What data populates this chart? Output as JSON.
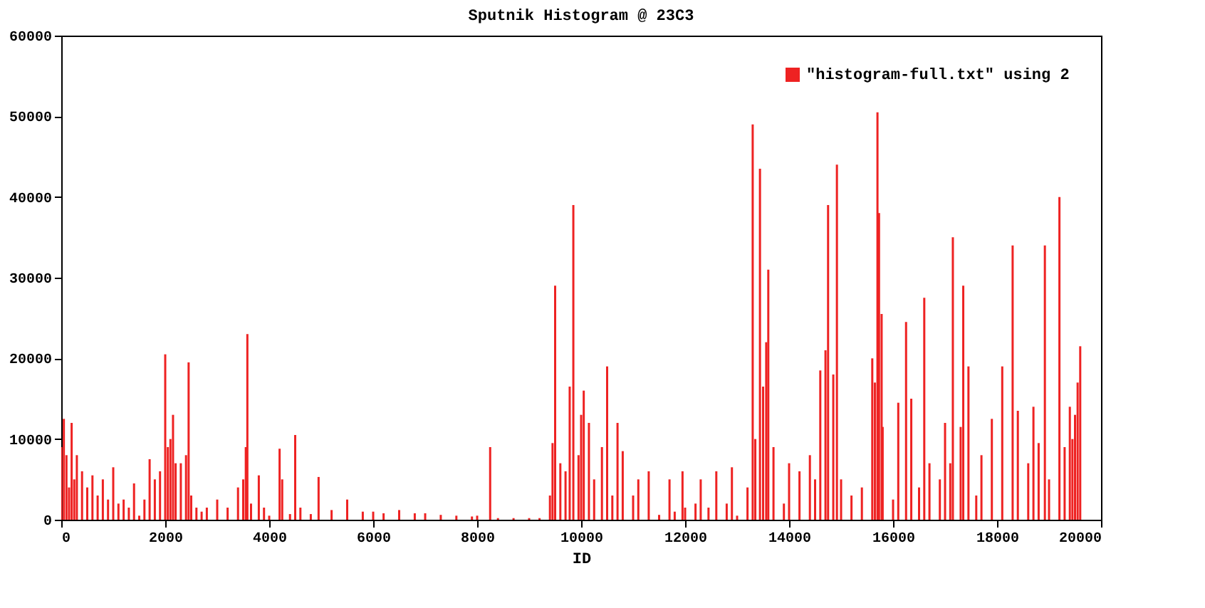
{
  "chart_data": {
    "type": "bar",
    "title": "Sputnik Histogram @ 23C3",
    "xlabel": "ID",
    "xlim": [
      0,
      20000
    ],
    "xticks": [
      0,
      2000,
      4000,
      6000,
      8000,
      10000,
      12000,
      14000,
      16000,
      18000,
      20000
    ],
    "ylim": [
      0,
      60000
    ],
    "yticks": [
      0,
      10000,
      20000,
      30000,
      40000,
      50000,
      60000
    ],
    "grid": false,
    "legend": "top right",
    "x": [
      0,
      50,
      100,
      150,
      200,
      250,
      300,
      400,
      500,
      600,
      700,
      800,
      900,
      1000,
      1100,
      1200,
      1300,
      1400,
      1500,
      1600,
      1700,
      1800,
      1900,
      2000,
      2050,
      2100,
      2150,
      2200,
      2300,
      2400,
      2450,
      2500,
      2600,
      2700,
      2800,
      3000,
      3200,
      3400,
      3500,
      3550,
      3580,
      3650,
      3800,
      3900,
      4000,
      4200,
      4250,
      4400,
      4500,
      4600,
      4800,
      4950,
      5200,
      5500,
      5800,
      6000,
      6200,
      6500,
      6800,
      7000,
      7300,
      7600,
      7900,
      8000,
      8250,
      8400,
      8700,
      9000,
      9200,
      9400,
      9450,
      9500,
      9600,
      9700,
      9780,
      9850,
      9950,
      10000,
      10050,
      10150,
      10250,
      10400,
      10500,
      10600,
      10700,
      10800,
      11000,
      11100,
      11300,
      11500,
      11700,
      11800,
      11950,
      12000,
      12200,
      12300,
      12450,
      12600,
      12800,
      12900,
      13000,
      13200,
      13300,
      13350,
      13440,
      13500,
      13560,
      13600,
      13700,
      13900,
      14000,
      14200,
      14400,
      14500,
      14600,
      14700,
      14750,
      14850,
      14920,
      15000,
      15200,
      15400,
      15600,
      15650,
      15700,
      15730,
      15780,
      15800,
      16000,
      16100,
      16250,
      16350,
      16500,
      16600,
      16700,
      16900,
      17000,
      17100,
      17150,
      17300,
      17350,
      17450,
      17600,
      17700,
      17900,
      18100,
      18300,
      18400,
      18600,
      18700,
      18800,
      18920,
      19000,
      19200,
      19300,
      19400,
      19450,
      19500,
      19550,
      19600
    ],
    "series": [
      {
        "name": "\"histogram-full.txt\" using 2",
        "color": "#ee2222",
        "values": [
          9000,
          12500,
          8000,
          4000,
          12000,
          5000,
          8000,
          6000,
          4000,
          5500,
          3000,
          5000,
          2500,
          6500,
          2000,
          2500,
          1500,
          4500,
          500,
          2500,
          7500,
          5000,
          6000,
          20500,
          9000,
          10000,
          13000,
          7000,
          7000,
          8000,
          19500,
          3000,
          1500,
          1000,
          1500,
          2500,
          1500,
          4000,
          5000,
          9000,
          23000,
          2000,
          5500,
          1500,
          500,
          8800,
          5000,
          700,
          10500,
          1500,
          700,
          5300,
          1200,
          2500,
          1000,
          1000,
          800,
          1200,
          800,
          800,
          600,
          500,
          400,
          500,
          9000,
          200,
          200,
          200,
          200,
          3000,
          9500,
          29000,
          7000,
          6000,
          16500,
          39000,
          8000,
          13000,
          16000,
          12000,
          5000,
          9000,
          19000,
          3000,
          12000,
          8500,
          3000,
          5000,
          6000,
          600,
          5000,
          1000,
          6000,
          1500,
          2000,
          5000,
          1500,
          6000,
          2000,
          6500,
          500,
          4000,
          49000,
          10000,
          43500,
          16500,
          22000,
          31000,
          9000,
          2000,
          7000,
          6000,
          8000,
          5000,
          18500,
          21000,
          39000,
          18000,
          44000,
          5000,
          3000,
          4000,
          20000,
          17000,
          50500,
          38000,
          25500,
          11500,
          2500,
          14500,
          24500,
          15000,
          4000,
          27500,
          7000,
          5000,
          12000,
          7000,
          35000,
          11500,
          29000,
          19000,
          3000,
          8000,
          12500,
          19000,
          34000,
          13500,
          7000,
          14000,
          9500,
          34000,
          5000,
          40000,
          9000,
          14000,
          10000,
          13000,
          17000,
          21500
        ]
      }
    ]
  }
}
